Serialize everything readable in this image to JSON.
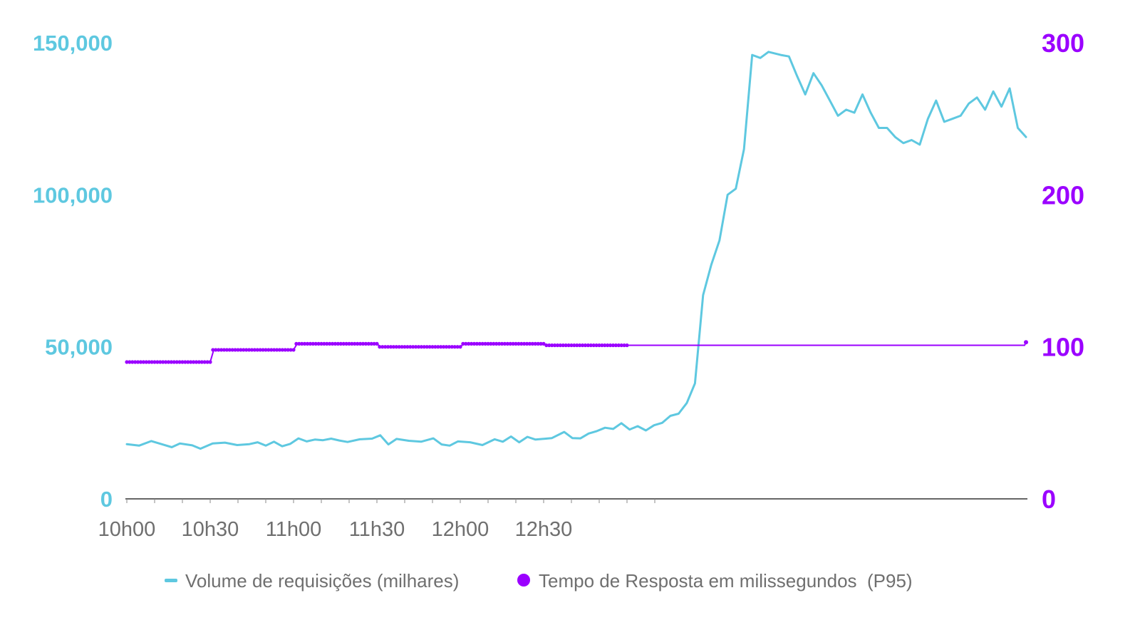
{
  "colors": {
    "volume": "#5ec8e0",
    "latency": "#9b00ff",
    "axis": "#333333",
    "label": "#6f6f6f"
  },
  "chart_data": {
    "type": "line",
    "x_ticks": [
      "10h00",
      "10h30",
      "11h00",
      "11h30",
      "12h00",
      "12h30"
    ],
    "x_range_minutes": [
      0,
      180
    ],
    "y_left": {
      "ticks": [
        "0",
        "50,000",
        "100,000",
        "150,000"
      ],
      "range": [
        0,
        150000
      ]
    },
    "y_right": {
      "ticks": [
        "0",
        "100",
        "200",
        "300"
      ],
      "range": [
        0,
        300
      ]
    },
    "grid": false,
    "legend_position": "bottom-center",
    "series": [
      {
        "name": "Volume de requisições (milhares)",
        "axis": "left",
        "style": "line",
        "points": [
          [
            0,
            18000
          ],
          [
            3,
            17500
          ],
          [
            6,
            19000
          ],
          [
            9,
            17800
          ],
          [
            11,
            17000
          ],
          [
            13,
            18200
          ],
          [
            16,
            17600
          ],
          [
            18,
            16500
          ],
          [
            21,
            18200
          ],
          [
            24,
            18500
          ],
          [
            27,
            17700
          ],
          [
            30,
            18000
          ],
          [
            32,
            18600
          ],
          [
            34,
            17500
          ],
          [
            36,
            18800
          ],
          [
            38,
            17300
          ],
          [
            40,
            18100
          ],
          [
            42,
            19900
          ],
          [
            44,
            18900
          ],
          [
            46,
            19500
          ],
          [
            48,
            19300
          ],
          [
            50,
            19800
          ],
          [
            52,
            19200
          ],
          [
            54,
            18700
          ],
          [
            57,
            19600
          ],
          [
            60,
            19800
          ],
          [
            62,
            20900
          ],
          [
            64,
            17900
          ],
          [
            66,
            19700
          ],
          [
            69,
            19100
          ],
          [
            72,
            18800
          ],
          [
            75,
            19900
          ],
          [
            77,
            17900
          ],
          [
            79,
            17500
          ],
          [
            81,
            18900
          ],
          [
            84,
            18600
          ],
          [
            87,
            17700
          ],
          [
            90,
            19600
          ],
          [
            92,
            18800
          ],
          [
            94,
            20500
          ],
          [
            96,
            18600
          ],
          [
            98,
            20400
          ],
          [
            100,
            19500
          ],
          [
            104,
            20000
          ],
          [
            107,
            22000
          ],
          [
            109,
            20000
          ],
          [
            111,
            19900
          ],
          [
            113,
            21500
          ],
          [
            115,
            22300
          ],
          [
            117,
            23400
          ],
          [
            119,
            23000
          ],
          [
            121,
            24900
          ],
          [
            123,
            22800
          ],
          [
            125,
            23900
          ],
          [
            127,
            22500
          ],
          [
            129,
            24200
          ],
          [
            131,
            25000
          ],
          [
            133,
            27300
          ],
          [
            135,
            28000
          ],
          [
            137,
            31500
          ],
          [
            139,
            38000
          ],
          [
            141,
            67000
          ],
          [
            143,
            77000
          ],
          [
            145,
            85000
          ],
          [
            147,
            100000
          ],
          [
            149,
            102000
          ],
          [
            151,
            115000
          ],
          [
            153,
            146000
          ],
          [
            155,
            145000
          ],
          [
            157,
            147000
          ],
          [
            160,
            146000
          ],
          [
            162,
            145500
          ],
          [
            164,
            139000
          ],
          [
            166,
            133000
          ],
          [
            168,
            140000
          ],
          [
            170,
            136000
          ],
          [
            172,
            131000
          ],
          [
            174,
            126000
          ],
          [
            176,
            128000
          ],
          [
            178,
            127000
          ],
          [
            180,
            133000
          ],
          [
            182,
            127000
          ],
          [
            184,
            122000
          ],
          [
            186,
            122000
          ],
          [
            188,
            119000
          ],
          [
            190,
            117000
          ],
          [
            192,
            118000
          ],
          [
            194,
            116500
          ],
          [
            196,
            125000
          ],
          [
            198,
            131000
          ],
          [
            200,
            124000
          ],
          [
            202,
            125000
          ],
          [
            204,
            126000
          ],
          [
            206,
            130000
          ],
          [
            208,
            132000
          ],
          [
            210,
            128000
          ],
          [
            212,
            134000
          ],
          [
            214,
            129000
          ],
          [
            216,
            135000
          ],
          [
            218,
            122000
          ],
          [
            220,
            119000
          ]
        ],
        "display_x_max": 220
      },
      {
        "name": "Tempo de Resposta em milissegundos  (P95)",
        "axis": "right",
        "style": "dotted",
        "steps": [
          [
            0,
            30,
            90
          ],
          [
            30,
            60,
            98
          ],
          [
            60,
            90,
            102
          ],
          [
            90,
            120,
            100
          ],
          [
            120,
            150,
            102
          ],
          [
            150,
            180,
            101
          ]
        ],
        "end_value": 103
      }
    ]
  }
}
